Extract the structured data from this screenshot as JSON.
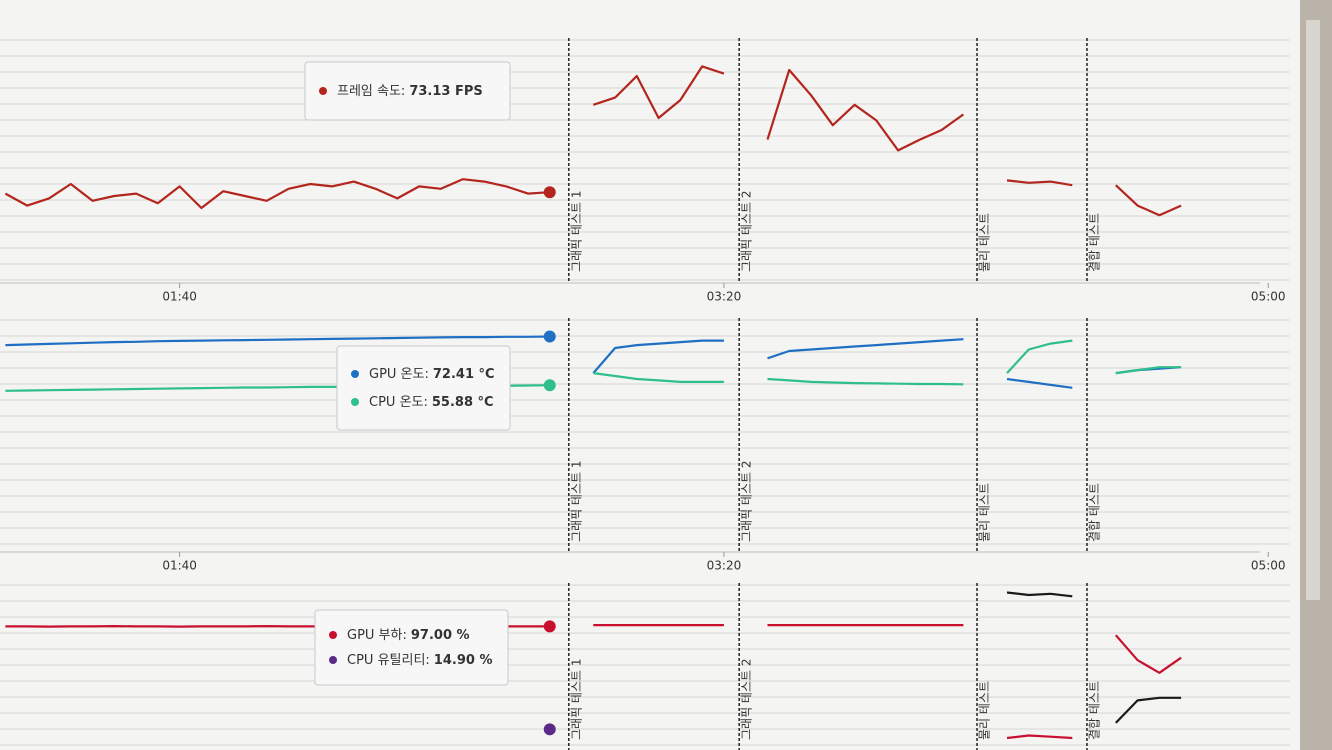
{
  "chart_data": [
    {
      "type": "line",
      "x": [
        68,
        72,
        76,
        80,
        84,
        88,
        92,
        96,
        100,
        104,
        108,
        112,
        116,
        120,
        124,
        128,
        132,
        136,
        140,
        144,
        148,
        152,
        156,
        160,
        164,
        168,
        172,
        176,
        180,
        184,
        188,
        192,
        196,
        200,
        204,
        208,
        212,
        216,
        220,
        224,
        228,
        232,
        236,
        240,
        244,
        248,
        252,
        256,
        260,
        264,
        268,
        272,
        276,
        280,
        284
      ],
      "xlim": [
        67,
        304
      ],
      "xticks": [
        {
          "value": 100,
          "label": "01:40"
        },
        {
          "value": 200,
          "label": "03:20"
        },
        {
          "value": 300,
          "label": "05:00"
        }
      ],
      "ylim": [
        0,
        200
      ],
      "grid": true,
      "series": [
        {
          "name": "프레임 속도:",
          "color": "#b3261e",
          "values": [
            72,
            62,
            68,
            80,
            66,
            70,
            72,
            64,
            78,
            60,
            74,
            70,
            66,
            76,
            80,
            78,
            82,
            76,
            68,
            78,
            76,
            84,
            82,
            78,
            72,
            73.13,
            null,
            146,
            152,
            170,
            135,
            150,
            178,
            172,
            null,
            117,
            175,
            154,
            129,
            146,
            133,
            108,
            117,
            125,
            138,
            null,
            83,
            81,
            82,
            79,
            null,
            79,
            62,
            54,
            62
          ],
          "value_labels": [
            null,
            null,
            null,
            null,
            null,
            null,
            null,
            null,
            null,
            null,
            null,
            null,
            null,
            null,
            null,
            null,
            null,
            null,
            null,
            null,
            null,
            null,
            null,
            null,
            null,
            "73.13 FPS",
            null,
            null,
            null,
            null,
            null,
            null,
            null,
            null,
            null,
            null,
            null,
            null,
            null,
            null,
            null,
            null,
            null,
            null,
            null,
            null,
            null,
            null,
            null,
            null,
            null,
            null,
            null,
            null,
            null
          ]
        }
      ],
      "annotations": [
        {
          "x": 171.5,
          "label": "그래픽 테스트 1"
        },
        {
          "x": 202.8,
          "label": "그래픽 테스트 2"
        },
        {
          "x": 246.5,
          "label": "물리 테스트"
        },
        {
          "x": 266.7,
          "label": "결합 테스트"
        }
      ]
    },
    {
      "type": "line",
      "x": [
        68,
        72,
        76,
        80,
        84,
        88,
        92,
        96,
        100,
        104,
        108,
        112,
        116,
        120,
        124,
        128,
        132,
        136,
        140,
        144,
        148,
        152,
        156,
        160,
        164,
        168,
        172,
        176,
        180,
        184,
        188,
        192,
        196,
        200,
        204,
        208,
        212,
        216,
        220,
        224,
        228,
        232,
        236,
        240,
        244,
        248,
        252,
        256,
        260,
        264,
        268,
        272,
        276,
        280,
        284
      ],
      "xlim": [
        67,
        304
      ],
      "xticks": [
        {
          "value": 100,
          "label": "01:40"
        },
        {
          "value": 200,
          "label": "03:20"
        },
        {
          "value": 300,
          "label": "05:00"
        }
      ],
      "ylim": [
        0,
        78
      ],
      "grid": true,
      "series": [
        {
          "name": "GPU 온도:",
          "color": "#1f6fc4",
          "values": [
            69.5,
            69.7,
            69.9,
            70.1,
            70.3,
            70.5,
            70.6,
            70.8,
            70.9,
            71,
            71.1,
            71.2,
            71.3,
            71.4,
            71.5,
            71.6,
            71.7,
            71.8,
            71.9,
            72,
            72.1,
            72.2,
            72.2,
            72.3,
            72.3,
            72.41,
            null,
            60,
            68.5,
            69.5,
            70,
            70.5,
            71,
            71,
            null,
            65,
            67.5,
            68,
            68.5,
            69,
            69.5,
            70,
            70.5,
            71,
            71.5,
            null,
            58,
            57,
            56,
            55,
            null,
            60,
            61,
            61.5,
            62
          ],
          "value_labels": [
            null,
            null,
            null,
            null,
            null,
            null,
            null,
            null,
            null,
            null,
            null,
            null,
            null,
            null,
            null,
            null,
            null,
            null,
            null,
            null,
            null,
            null,
            null,
            null,
            null,
            "72.41 °C",
            null,
            null,
            null,
            null,
            null,
            null,
            null,
            null,
            null,
            null,
            null,
            null,
            null,
            null,
            null,
            null,
            null,
            null,
            null,
            null,
            null,
            null,
            null,
            null,
            null,
            null,
            null,
            null,
            null
          ]
        },
        {
          "name": "CPU 온도:",
          "color": "#2fbf8a",
          "values": [
            54,
            54.1,
            54.2,
            54.3,
            54.4,
            54.5,
            54.6,
            54.7,
            54.8,
            54.9,
            55,
            55.1,
            55.1,
            55.2,
            55.3,
            55.3,
            55.4,
            55.4,
            55.5,
            55.5,
            55.6,
            55.6,
            55.7,
            55.7,
            55.8,
            55.88,
            null,
            60,
            59,
            58,
            57.5,
            57,
            57,
            57,
            null,
            58,
            57.5,
            57,
            56.8,
            56.6,
            56.5,
            56.4,
            56.3,
            56.3,
            56.2,
            null,
            60,
            68,
            70,
            71,
            null,
            60,
            61,
            62,
            62
          ],
          "value_labels": [
            null,
            null,
            null,
            null,
            null,
            null,
            null,
            null,
            null,
            null,
            null,
            null,
            null,
            null,
            null,
            null,
            null,
            null,
            null,
            null,
            null,
            null,
            null,
            null,
            null,
            "55.88 °C",
            null,
            null,
            null,
            null,
            null,
            null,
            null,
            null,
            null,
            null,
            null,
            null,
            null,
            null,
            null,
            null,
            null,
            null,
            null,
            null,
            null,
            null,
            null,
            null,
            null,
            null,
            null,
            null,
            null
          ]
        }
      ],
      "annotations": [
        {
          "x": 171.5,
          "label": "그래픽 테스트 1"
        },
        {
          "x": 202.8,
          "label": "그래픽 테스트 2"
        },
        {
          "x": 246.5,
          "label": "물리 테스트"
        },
        {
          "x": 266.7,
          "label": "결합 테스트"
        }
      ]
    },
    {
      "type": "line",
      "x": [
        68,
        72,
        76,
        80,
        84,
        88,
        92,
        96,
        100,
        104,
        108,
        112,
        116,
        120,
        124,
        128,
        132,
        136,
        140,
        144,
        148,
        152,
        156,
        160,
        164,
        168,
        172,
        176,
        180,
        184,
        188,
        192,
        196,
        200,
        204,
        208,
        212,
        216,
        220,
        224,
        228,
        232,
        236,
        240,
        244,
        248,
        252,
        256,
        260,
        264,
        268,
        272,
        276,
        280,
        284
      ],
      "xlim": [
        67,
        304
      ],
      "ylim": [
        0,
        130
      ],
      "grid": true,
      "series": [
        {
          "name": "GPU 부하:",
          "color": "#c8102e",
          "values": [
            97,
            97,
            96.8,
            97,
            97,
            97.2,
            97,
            97,
            96.8,
            97,
            97,
            97,
            97.2,
            97,
            97,
            97,
            96.8,
            97,
            97,
            97,
            97,
            97.2,
            97,
            97,
            97,
            97,
            null,
            98,
            98,
            98,
            98,
            98,
            98,
            98,
            null,
            98,
            98,
            98,
            98,
            98,
            98,
            98,
            98,
            98,
            98,
            null,
            8,
            10,
            9,
            8,
            null,
            90,
            70,
            60,
            72
          ],
          "value_labels": [
            null,
            null,
            null,
            null,
            null,
            null,
            null,
            null,
            null,
            null,
            null,
            null,
            null,
            null,
            null,
            null,
            null,
            null,
            null,
            null,
            null,
            null,
            null,
            null,
            null,
            "97.00 %",
            null,
            null,
            null,
            null,
            null,
            null,
            null,
            null,
            null,
            null,
            null,
            null,
            null,
            null,
            null,
            null,
            null,
            null,
            null,
            null,
            null,
            null,
            null,
            null,
            null,
            null,
            null,
            null,
            null
          ]
        },
        {
          "name": "CPU 유틸리티:",
          "color": "#1a1a1a",
          "marker_color": "#5b2a86",
          "values": [
            null,
            null,
            null,
            null,
            null,
            null,
            null,
            null,
            null,
            null,
            null,
            null,
            null,
            null,
            null,
            null,
            null,
            null,
            null,
            null,
            null,
            null,
            null,
            null,
            null,
            14.9,
            null,
            null,
            null,
            null,
            null,
            null,
            null,
            null,
            null,
            null,
            null,
            null,
            null,
            null,
            null,
            null,
            null,
            null,
            null,
            null,
            124,
            122,
            123,
            121,
            null,
            20,
            38,
            40,
            40
          ],
          "value_labels": [
            null,
            null,
            null,
            null,
            null,
            null,
            null,
            null,
            null,
            null,
            null,
            null,
            null,
            null,
            null,
            null,
            null,
            null,
            null,
            null,
            null,
            null,
            null,
            null,
            null,
            "14.90 %",
            null,
            null,
            null,
            null,
            null,
            null,
            null,
            null,
            null,
            null,
            null,
            null,
            null,
            null,
            null,
            null,
            null,
            null,
            null,
            null,
            null,
            null,
            null,
            null,
            null,
            null,
            null,
            null,
            null
          ]
        }
      ],
      "annotations": [
        {
          "x": 171.5,
          "label": "그래픽 테스트 1"
        },
        {
          "x": 202.8,
          "label": "그래픽 테스트 2"
        },
        {
          "x": 246.5,
          "label": "물리 테스트"
        },
        {
          "x": 266.7,
          "label": "결합 테스트"
        }
      ]
    }
  ]
}
